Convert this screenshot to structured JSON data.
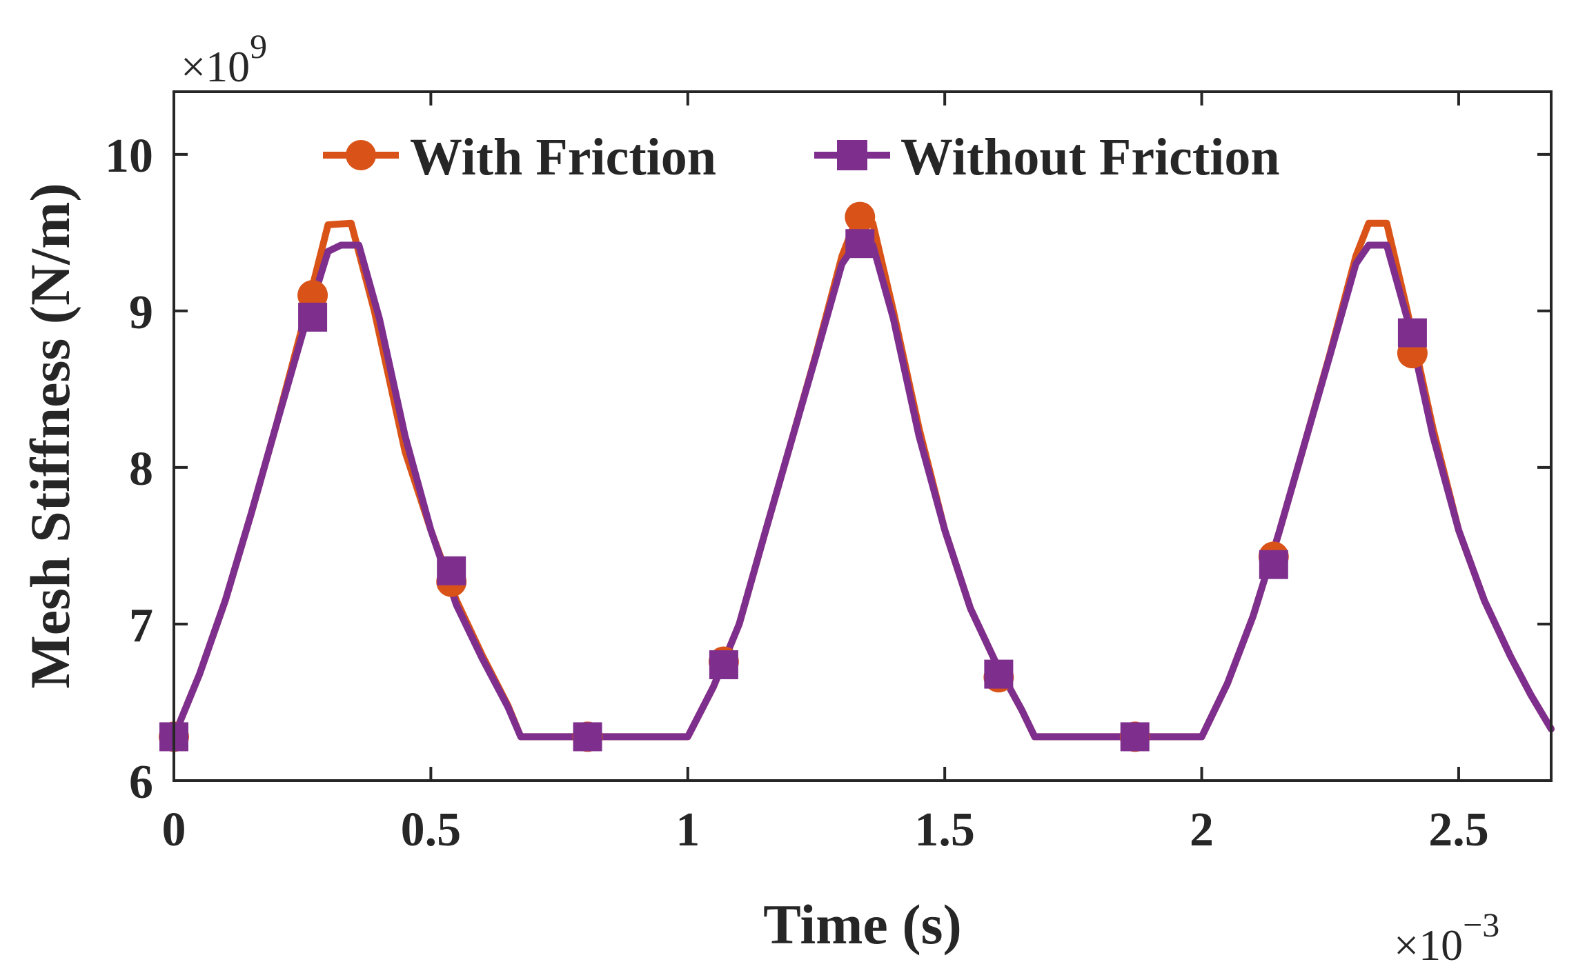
{
  "chart_data": {
    "type": "line",
    "title": "",
    "xlabel": "Time (s)",
    "ylabel": "Mesh Stiffness (N/m)",
    "x_multiplier_label": "×10",
    "x_multiplier_exponent": "−3",
    "y_multiplier_label": "×10",
    "y_multiplier_exponent": "9",
    "xlim": [
      0,
      2.68
    ],
    "ylim": [
      6,
      10.4
    ],
    "xticks": [
      0,
      0.5,
      1,
      1.5,
      2,
      2.5
    ],
    "xtick_labels": [
      "0",
      "0.5",
      "1",
      "1.5",
      "2",
      "2.5"
    ],
    "yticks": [
      6,
      7,
      8,
      9,
      10
    ],
    "ytick_labels": [
      "6",
      "7",
      "8",
      "9",
      "10"
    ],
    "grid": false,
    "legend": {
      "position": "top-center",
      "orientation": "horizontal"
    },
    "series": [
      {
        "name": "With Friction",
        "color": "#D95319",
        "marker": "circle",
        "line_points": [
          [
            0,
            6.28
          ],
          [
            0.05,
            6.68
          ],
          [
            0.1,
            7.15
          ],
          [
            0.15,
            7.7
          ],
          [
            0.2,
            8.28
          ],
          [
            0.25,
            8.9
          ],
          [
            0.3,
            9.55
          ],
          [
            0.345,
            9.56
          ],
          [
            0.39,
            9.0
          ],
          [
            0.45,
            8.1
          ],
          [
            0.5,
            7.6
          ],
          [
            0.55,
            7.15
          ],
          [
            0.6,
            6.8
          ],
          [
            0.65,
            6.48
          ],
          [
            0.675,
            6.28
          ],
          [
            1.0,
            6.28
          ],
          [
            1.05,
            6.6
          ],
          [
            1.1,
            7.0
          ],
          [
            1.15,
            7.58
          ],
          [
            1.2,
            8.15
          ],
          [
            1.25,
            8.73
          ],
          [
            1.3,
            9.35
          ],
          [
            1.325,
            9.56
          ],
          [
            1.36,
            9.56
          ],
          [
            1.4,
            9.0
          ],
          [
            1.45,
            8.25
          ],
          [
            1.5,
            7.6
          ],
          [
            1.55,
            7.1
          ],
          [
            1.6,
            6.75
          ],
          [
            1.65,
            6.45
          ],
          [
            1.675,
            6.28
          ],
          [
            2.0,
            6.28
          ],
          [
            2.05,
            6.62
          ],
          [
            2.1,
            7.05
          ],
          [
            2.15,
            7.58
          ],
          [
            2.2,
            8.15
          ],
          [
            2.25,
            8.73
          ],
          [
            2.3,
            9.35
          ],
          [
            2.325,
            9.56
          ],
          [
            2.36,
            9.56
          ],
          [
            2.4,
            9.0
          ],
          [
            2.45,
            8.25
          ],
          [
            2.5,
            7.6
          ],
          [
            2.55,
            7.15
          ],
          [
            2.6,
            6.8
          ],
          [
            2.64,
            6.55
          ],
          [
            2.68,
            6.33
          ]
        ],
        "markers": [
          [
            0,
            6.28
          ],
          [
            0.27,
            9.1
          ],
          [
            0.54,
            7.27
          ],
          [
            0.805,
            6.28
          ],
          [
            1.07,
            6.76
          ],
          [
            1.335,
            9.6
          ],
          [
            1.605,
            6.66
          ],
          [
            1.87,
            6.28
          ],
          [
            2.14,
            7.43
          ],
          [
            2.41,
            8.73
          ]
        ]
      },
      {
        "name": "Without Friction",
        "color": "#7E2F8E",
        "marker": "square",
        "line_points": [
          [
            0,
            6.28
          ],
          [
            0.05,
            6.68
          ],
          [
            0.1,
            7.15
          ],
          [
            0.15,
            7.7
          ],
          [
            0.2,
            8.28
          ],
          [
            0.25,
            8.85
          ],
          [
            0.3,
            9.38
          ],
          [
            0.325,
            9.42
          ],
          [
            0.36,
            9.42
          ],
          [
            0.4,
            8.95
          ],
          [
            0.45,
            8.2
          ],
          [
            0.5,
            7.6
          ],
          [
            0.55,
            7.12
          ],
          [
            0.6,
            6.78
          ],
          [
            0.65,
            6.47
          ],
          [
            0.675,
            6.28
          ],
          [
            1.0,
            6.28
          ],
          [
            1.05,
            6.6
          ],
          [
            1.1,
            7.0
          ],
          [
            1.15,
            7.58
          ],
          [
            1.2,
            8.15
          ],
          [
            1.25,
            8.72
          ],
          [
            1.3,
            9.3
          ],
          [
            1.325,
            9.42
          ],
          [
            1.36,
            9.42
          ],
          [
            1.4,
            8.95
          ],
          [
            1.45,
            8.2
          ],
          [
            1.5,
            7.6
          ],
          [
            1.55,
            7.1
          ],
          [
            1.6,
            6.75
          ],
          [
            1.65,
            6.45
          ],
          [
            1.675,
            6.28
          ],
          [
            2.0,
            6.28
          ],
          [
            2.05,
            6.62
          ],
          [
            2.1,
            7.05
          ],
          [
            2.15,
            7.58
          ],
          [
            2.2,
            8.15
          ],
          [
            2.25,
            8.72
          ],
          [
            2.3,
            9.3
          ],
          [
            2.325,
            9.42
          ],
          [
            2.36,
            9.42
          ],
          [
            2.4,
            8.95
          ],
          [
            2.45,
            8.2
          ],
          [
            2.5,
            7.6
          ],
          [
            2.55,
            7.15
          ],
          [
            2.6,
            6.8
          ],
          [
            2.64,
            6.55
          ],
          [
            2.68,
            6.33
          ]
        ],
        "markers": [
          [
            0,
            6.28
          ],
          [
            0.27,
            8.96
          ],
          [
            0.54,
            7.34
          ],
          [
            0.805,
            6.28
          ],
          [
            1.07,
            6.74
          ],
          [
            1.335,
            9.43
          ],
          [
            1.605,
            6.68
          ],
          [
            1.87,
            6.28
          ],
          [
            2.14,
            7.38
          ],
          [
            2.41,
            8.86
          ]
        ]
      }
    ]
  }
}
